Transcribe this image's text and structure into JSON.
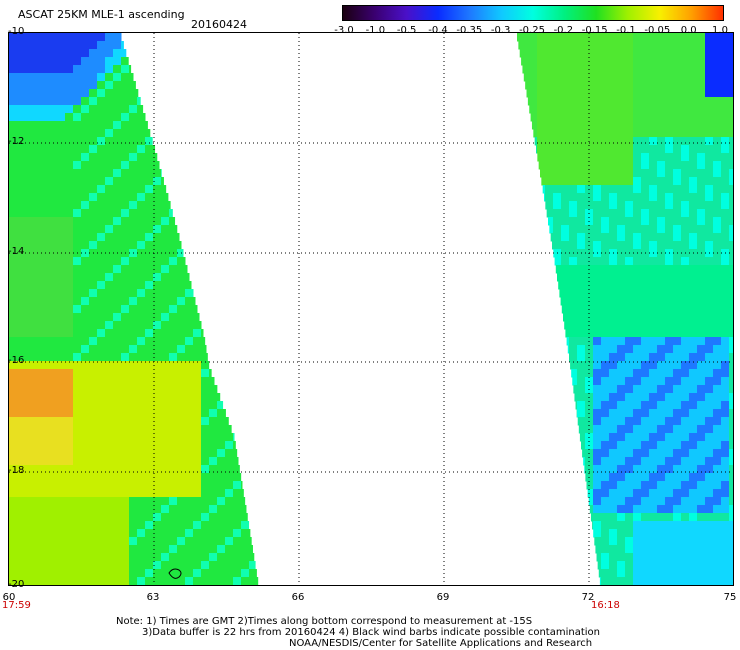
{
  "header": {
    "title": "ASCAT 25KM MLE-1 ascending",
    "date": "20160424"
  },
  "colorbar": {
    "labels": [
      "-3.0",
      "-1.0",
      "-0.5",
      "-0.4",
      "-0.35",
      "-0.3",
      "-0.25",
      "-0.2",
      "-0.15",
      "-0.1",
      "-0.05",
      "0.0",
      "1.0"
    ],
    "colors": [
      "#1a0010",
      "#3a0070",
      "#4a10c8",
      "#0a2cff",
      "#1e78ff",
      "#10c8ff",
      "#00ffe0",
      "#00f080",
      "#20e020",
      "#a0f000",
      "#f8f000",
      "#ffa000",
      "#ff3000"
    ]
  },
  "map": {
    "lat_labels": [
      "-10",
      "-12",
      "-14",
      "-16",
      "-18",
      "-20"
    ],
    "lon_labels": [
      "60",
      "63",
      "66",
      "69",
      "72",
      "75"
    ],
    "left_time": "17:59",
    "right_time": "16:18"
  },
  "footer": {
    "note1": "Note: 1) Times are GMT 2)Times along bottom correspond to measurement at -15S",
    "note2": "3)Data buffer is 22 hrs from 20160424 4) Black wind barbs indicate possible contamination",
    "note3": "NOAA/NESDIS/Center for Satellite Applications and Research"
  }
}
